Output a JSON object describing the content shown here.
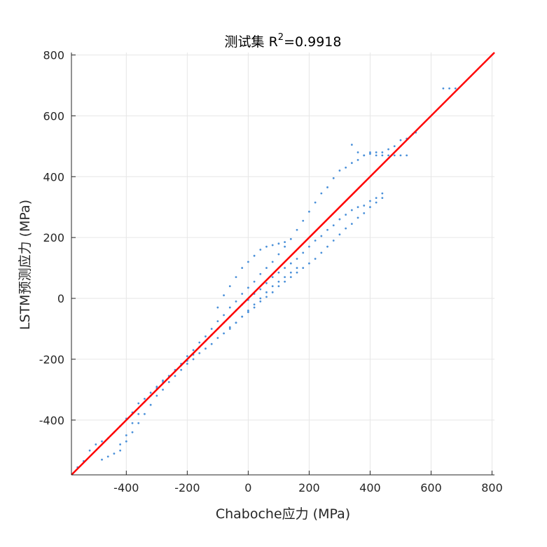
{
  "chart_data": {
    "type": "scatter",
    "title": "测试集 R",
    "title_sup": "2",
    "title_suffix": "=0.9918",
    "xlabel": "Chaboche应力 (MPa)",
    "ylabel": "LSTM预测应力 (MPa)",
    "xlim": [
      -580,
      808
    ],
    "ylim": [
      -580,
      808
    ],
    "xticks": [
      -400,
      -200,
      0,
      200,
      400,
      600,
      800
    ],
    "yticks": [
      -400,
      -200,
      0,
      200,
      400,
      600,
      800
    ],
    "grid": true,
    "colors": {
      "points": "#4a90d9",
      "fit_line": "#ff0000",
      "grid": "#e6e6e6",
      "axis": "#262626"
    },
    "fit_line": {
      "name": "y = x",
      "x": [
        -580,
        808
      ],
      "y": [
        -580,
        808
      ]
    },
    "series": [
      {
        "values_x": [
          -560,
          -540,
          -520,
          -500,
          -480,
          -460,
          -440,
          -420,
          -400,
          -380,
          -360,
          -340,
          -320,
          -300,
          -280,
          -260,
          -240,
          -220,
          -200,
          -180,
          -160,
          -140,
          -120,
          -100,
          -80,
          -60,
          -40,
          -20,
          0,
          20,
          40,
          60,
          80,
          100,
          120,
          140,
          160,
          180,
          200,
          220,
          240,
          260,
          280,
          300,
          320,
          340,
          360,
          380,
          400,
          420,
          440,
          460,
          480,
          500,
          520,
          540,
          550,
          -480,
          -460,
          -440,
          -420,
          -400,
          -380,
          -360,
          -340,
          -320,
          -300,
          -280,
          -260,
          -240,
          -220,
          -200,
          -180,
          -160,
          -140,
          -120,
          -100,
          -80,
          -60,
          -40,
          -20,
          0,
          20,
          40,
          60,
          80,
          100,
          120,
          140,
          160,
          180,
          200,
          220,
          240,
          260,
          280,
          300,
          320,
          340,
          360,
          380,
          400,
          420,
          440,
          -420,
          -400,
          -380,
          -360,
          -340,
          -320,
          -300,
          -280,
          -260,
          -240,
          -220,
          -200,
          -180,
          -160,
          -140,
          -120,
          -100,
          -80,
          -60,
          -40,
          -20,
          0,
          20,
          40,
          60,
          80,
          100,
          120,
          140,
          160,
          180,
          200,
          220,
          240,
          260,
          280,
          300,
          320,
          340,
          360,
          380,
          400,
          420,
          440,
          -100,
          -80,
          -60,
          -40,
          -20,
          0,
          20,
          40,
          60,
          80,
          100,
          120,
          -60,
          -40,
          -20,
          0,
          20,
          40,
          60,
          80,
          100,
          120,
          140,
          160,
          340,
          360,
          380,
          400,
          420,
          440,
          460,
          480,
          500,
          520,
          640,
          660,
          680
        ],
        "values_y": [
          -555,
          -535,
          -500,
          -480,
          -470,
          -460,
          -440,
          -420,
          -395,
          -375,
          -345,
          -330,
          -310,
          -295,
          -275,
          -255,
          -235,
          -215,
          -190,
          -170,
          -145,
          -125,
          -100,
          -75,
          -55,
          -30,
          -10,
          15,
          35,
          55,
          80,
          100,
          120,
          145,
          170,
          195,
          225,
          255,
          285,
          315,
          345,
          365,
          395,
          420,
          430,
          445,
          455,
          470,
          480,
          480,
          480,
          490,
          500,
          520,
          525,
          540,
          545,
          -530,
          -520,
          -510,
          -480,
          -450,
          -410,
          -380,
          -340,
          -320,
          -290,
          -270,
          -255,
          -240,
          -220,
          -205,
          -185,
          -160,
          -140,
          -120,
          -100,
          -80,
          -60,
          -40,
          -20,
          -5,
          15,
          30,
          50,
          70,
          85,
          100,
          115,
          130,
          150,
          170,
          190,
          205,
          225,
          240,
          260,
          275,
          290,
          300,
          305,
          320,
          330,
          345,
          -500,
          -470,
          -440,
          -410,
          -380,
          -350,
          -320,
          -300,
          -275,
          -255,
          -235,
          -215,
          -200,
          -180,
          -165,
          -150,
          -130,
          -115,
          -95,
          -80,
          -60,
          -45,
          -30,
          -10,
          5,
          20,
          40,
          55,
          70,
          85,
          100,
          115,
          130,
          150,
          170,
          190,
          210,
          230,
          245,
          265,
          280,
          300,
          315,
          330,
          -30,
          10,
          40,
          70,
          100,
          120,
          140,
          160,
          170,
          175,
          180,
          185,
          -100,
          -80,
          -60,
          -40,
          -20,
          0,
          20,
          40,
          55,
          70,
          85,
          100,
          505,
          480,
          470,
          475,
          470,
          470,
          470,
          470,
          470,
          470,
          690,
          690,
          690
        ]
      }
    ]
  }
}
